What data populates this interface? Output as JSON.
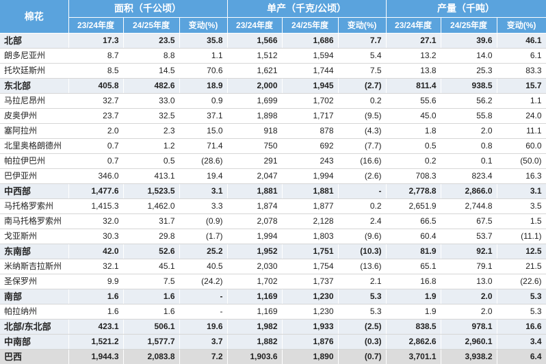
{
  "header": {
    "corner": "棉花",
    "groups": [
      "面积（千公顷）",
      "单产（千克/公顷）",
      "产量（千吨）"
    ],
    "subheaders": [
      "23/24年度",
      "24/25年度",
      "变动(%)",
      "23/24年度",
      "24/25年度",
      "变动(%)",
      "23/24年度",
      "24/25年度",
      "变动(%)"
    ]
  },
  "rows": [
    {
      "type": "region",
      "name": "北部",
      "values": [
        "17.3",
        "23.5",
        "35.8",
        "1,566",
        "1,686",
        "7.7",
        "27.1",
        "39.6",
        "46.1"
      ]
    },
    {
      "type": "sub",
      "name": "朗多尼亚州",
      "values": [
        "8.7",
        "8.8",
        "1.1",
        "1,512",
        "1,594",
        "5.4",
        "13.2",
        "14.0",
        "6.1"
      ]
    },
    {
      "type": "sub",
      "name": "托坎廷斯州",
      "values": [
        "8.5",
        "14.5",
        "70.6",
        "1,621",
        "1,744",
        "7.5",
        "13.8",
        "25.3",
        "83.3"
      ]
    },
    {
      "type": "region",
      "name": "东北部",
      "values": [
        "405.8",
        "482.6",
        "18.9",
        "2,000",
        "1,945",
        "(2.7)",
        "811.4",
        "938.5",
        "15.7"
      ]
    },
    {
      "type": "sub",
      "name": "马拉尼昂州",
      "values": [
        "32.7",
        "33.0",
        "0.9",
        "1,699",
        "1,702",
        "0.2",
        "55.6",
        "56.2",
        "1.1"
      ]
    },
    {
      "type": "sub",
      "name": "皮奥伊州",
      "values": [
        "23.7",
        "32.5",
        "37.1",
        "1,898",
        "1,717",
        "(9.5)",
        "45.0",
        "55.8",
        "24.0"
      ]
    },
    {
      "type": "sub",
      "name": "塞阿拉州",
      "values": [
        "2.0",
        "2.3",
        "15.0",
        "918",
        "878",
        "(4.3)",
        "1.8",
        "2.0",
        "11.1"
      ]
    },
    {
      "type": "sub",
      "name": "北里奥格朗德州",
      "values": [
        "0.7",
        "1.2",
        "71.4",
        "750",
        "692",
        "(7.7)",
        "0.5",
        "0.8",
        "60.0"
      ]
    },
    {
      "type": "sub",
      "name": "帕拉伊巴州",
      "values": [
        "0.7",
        "0.5",
        "(28.6)",
        "291",
        "243",
        "(16.6)",
        "0.2",
        "0.1",
        "(50.0)"
      ]
    },
    {
      "type": "sub",
      "name": "巴伊亚州",
      "values": [
        "346.0",
        "413.1",
        "19.4",
        "2,047",
        "1,994",
        "(2.6)",
        "708.3",
        "823.4",
        "16.3"
      ]
    },
    {
      "type": "region",
      "name": "中西部",
      "values": [
        "1,477.6",
        "1,523.5",
        "3.1",
        "1,881",
        "1,881",
        "-",
        "2,778.8",
        "2,866.0",
        "3.1"
      ]
    },
    {
      "type": "sub",
      "name": "马托格罗索州",
      "values": [
        "1,415.3",
        "1,462.0",
        "3.3",
        "1,874",
        "1,877",
        "0.2",
        "2,651.9",
        "2,744.8",
        "3.5"
      ]
    },
    {
      "type": "sub",
      "name": "南马托格罗索州",
      "values": [
        "32.0",
        "31.7",
        "(0.9)",
        "2,078",
        "2,128",
        "2.4",
        "66.5",
        "67.5",
        "1.5"
      ]
    },
    {
      "type": "sub",
      "name": "戈亚斯州",
      "values": [
        "30.3",
        "29.8",
        "(1.7)",
        "1,994",
        "1,803",
        "(9.6)",
        "60.4",
        "53.7",
        "(11.1)"
      ]
    },
    {
      "type": "region",
      "name": "东南部",
      "values": [
        "42.0",
        "52.6",
        "25.2",
        "1,952",
        "1,751",
        "(10.3)",
        "81.9",
        "92.1",
        "12.5"
      ]
    },
    {
      "type": "sub",
      "name": "米纳斯吉拉斯州",
      "values": [
        "32.1",
        "45.1",
        "40.5",
        "2,030",
        "1,754",
        "(13.6)",
        "65.1",
        "79.1",
        "21.5"
      ]
    },
    {
      "type": "sub",
      "name": "圣保罗州",
      "values": [
        "9.9",
        "7.5",
        "(24.2)",
        "1,702",
        "1,737",
        "2.1",
        "16.8",
        "13.0",
        "(22.6)"
      ]
    },
    {
      "type": "region",
      "name": "南部",
      "values": [
        "1.6",
        "1.6",
        "-",
        "1,169",
        "1,230",
        "5.3",
        "1.9",
        "2.0",
        "5.3"
      ]
    },
    {
      "type": "sub",
      "name": "帕拉纳州",
      "values": [
        "1.6",
        "1.6",
        "-",
        "1,169",
        "1,230",
        "5.3",
        "1.9",
        "2.0",
        "5.3"
      ]
    },
    {
      "type": "region",
      "name": "北部/东北部",
      "values": [
        "423.1",
        "506.1",
        "19.6",
        "1,982",
        "1,933",
        "(2.5)",
        "838.5",
        "978.1",
        "16.6"
      ]
    },
    {
      "type": "region",
      "name": "中南部",
      "values": [
        "1,521.2",
        "1,577.7",
        "3.7",
        "1,882",
        "1,876",
        "(0.3)",
        "2,862.6",
        "2,960.1",
        "3.4"
      ]
    },
    {
      "type": "total",
      "name": "巴西",
      "values": [
        "1,944.3",
        "2,083.8",
        "7.2",
        "1,903.6",
        "1,890",
        "(0.7)",
        "3,701.1",
        "3,938.2",
        "6.4"
      ]
    }
  ]
}
